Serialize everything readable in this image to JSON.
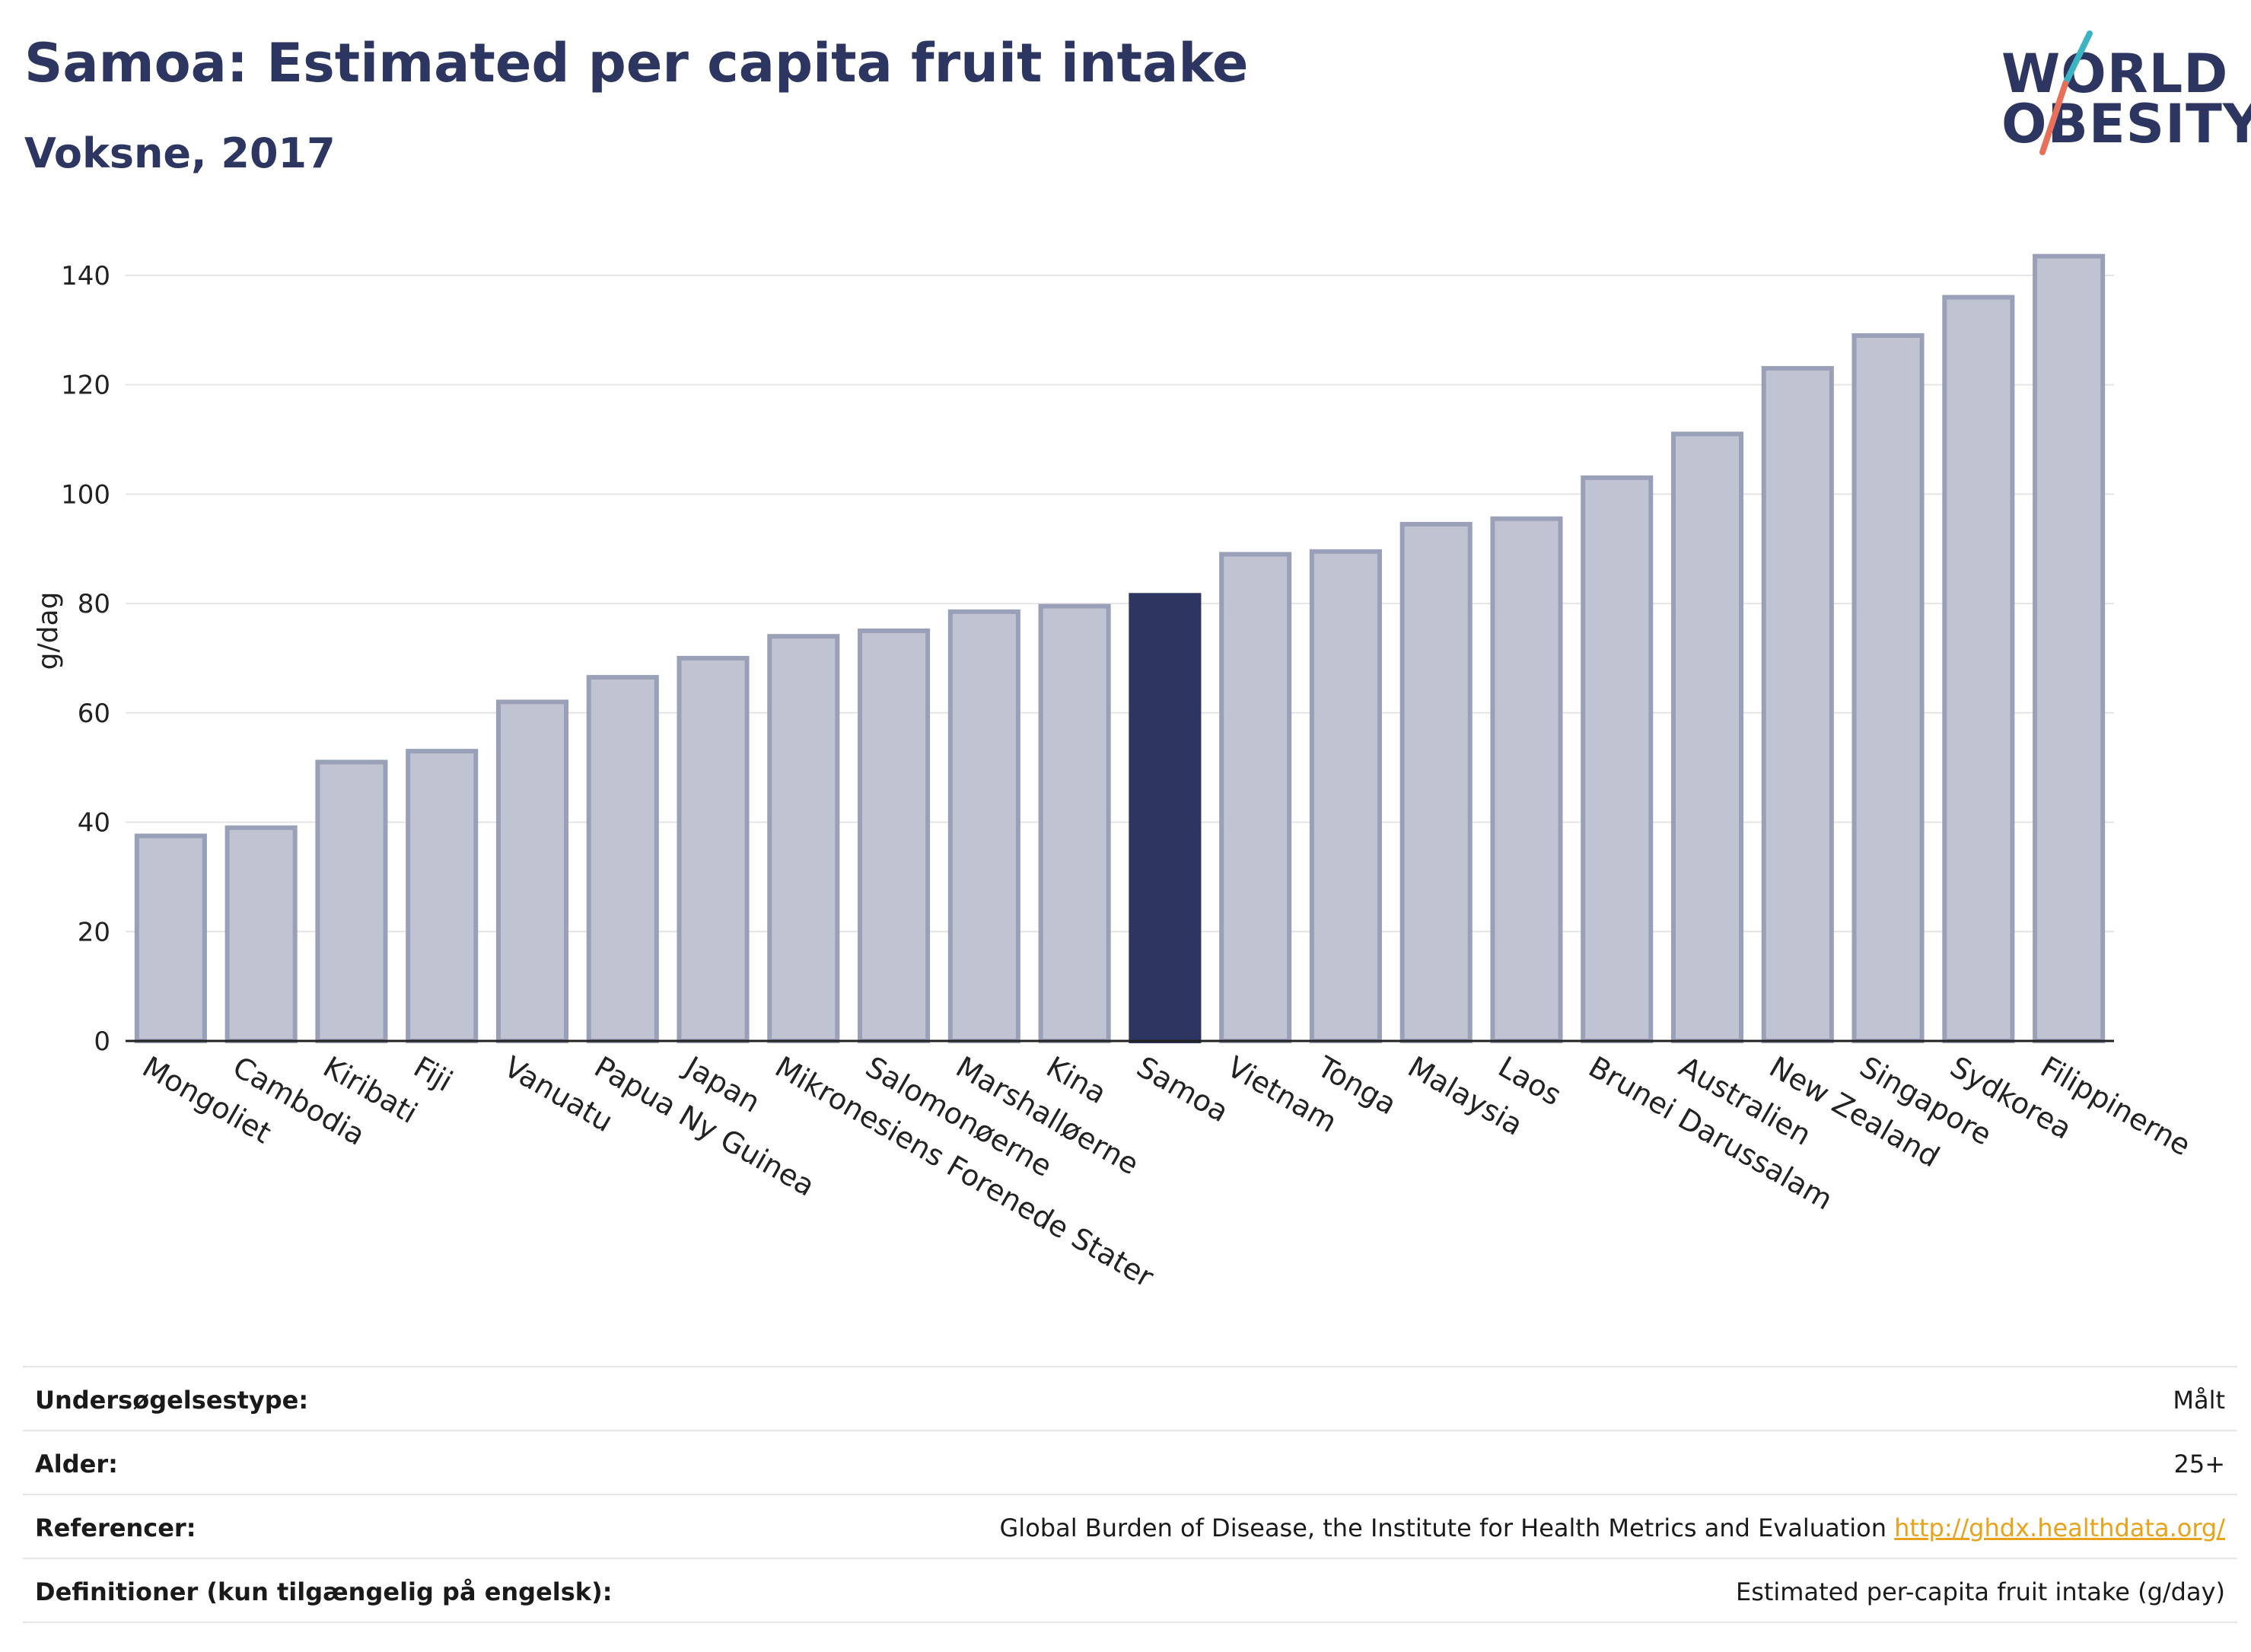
{
  "header": {
    "title": "Samoa: Estimated per capita fruit intake",
    "subtitle": "Voksne, 2017"
  },
  "logo": {
    "line1": "WORLD",
    "line2": "OBESITY",
    "colors": {
      "text": "#2d3660",
      "slash_top": "#3bb3c3",
      "slash_bottom": "#e8705a"
    }
  },
  "chart_data": {
    "type": "bar",
    "ylabel": "g/dag",
    "xlabel": "",
    "ylim": [
      0,
      150
    ],
    "yticks": [
      0,
      20,
      40,
      60,
      80,
      100,
      120,
      140
    ],
    "grid": true,
    "highlight": "Samoa",
    "colors": {
      "bar": "#c0c3d1",
      "bar_edge": "#9aa0b8",
      "highlight": "#2d3660"
    },
    "categories": [
      "Mongoliet",
      "Cambodia",
      "Kiribati",
      "Fiji",
      "Vanuatu",
      "Papua Ny Guinea",
      "Japan",
      "Mikronesiens Forenede Stater",
      "Salomonøerne",
      "Marshalløerne",
      "Kina",
      "Samoa",
      "Vietnam",
      "Tonga",
      "Malaysia",
      "Laos",
      "Brunei Darussalam",
      "Australien",
      "New Zealand",
      "Singapore",
      "Sydkorea",
      "Filippinerne"
    ],
    "values": [
      37.5,
      39,
      51,
      53,
      62,
      66.5,
      70,
      74,
      75,
      78.5,
      79.5,
      81.5,
      89,
      89.5,
      94.5,
      95.5,
      103,
      111,
      123,
      129,
      136,
      143.5
    ]
  },
  "info": {
    "rows": [
      {
        "label": "Undersøgelsestype:",
        "value": "Målt",
        "link": ""
      },
      {
        "label": "Alder:",
        "value": "25+",
        "link": ""
      },
      {
        "label": "Referencer:",
        "value": "Global Burden of Disease, the Institute for Health Metrics and Evaluation",
        "link": "http://ghdx.healthdata.org/"
      },
      {
        "label": "Definitioner (kun tilgængelig på engelsk):",
        "value": "Estimated per-capita fruit intake (g/day)",
        "link": ""
      }
    ]
  }
}
